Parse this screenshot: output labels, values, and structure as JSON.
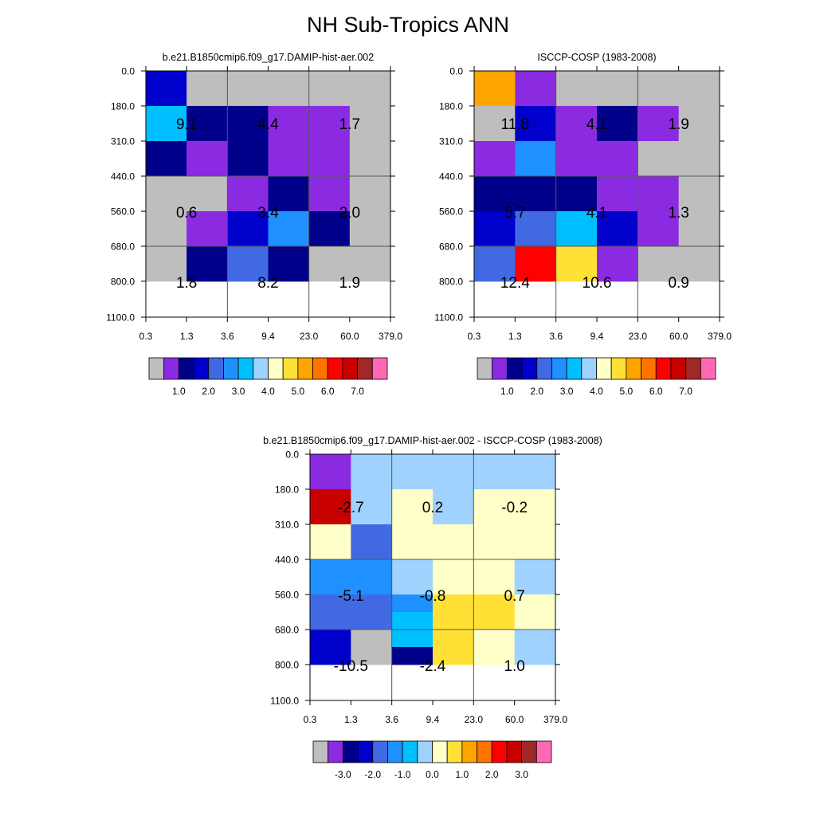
{
  "title": "NH Sub-Tropics ANN",
  "colors": {
    "frame": "#000000",
    "background": "#ffffff",
    "grid_line": "#555555"
  },
  "chart_data": [
    {
      "type": "heatmap",
      "panel": "model",
      "title": "b.e21.B1850cmip6.f09_g17.DAMIP-hist-aer.002",
      "xlabel": "",
      "ylabel": "",
      "x_ticks": [
        "0.3",
        "1.3",
        "3.6",
        "9.4",
        "23.0",
        "60.0",
        "379.0"
      ],
      "y_ticks": [
        "0.0",
        "180.0",
        "310.0",
        "440.0",
        "560.0",
        "680.0",
        "800.0",
        "1100.0"
      ],
      "cells": [
        [
          "#0000cd",
          "#bebebe",
          "#bebebe",
          "#bebebe",
          "#bebebe",
          "#bebebe"
        ],
        [
          "#00bfff",
          "#00008b",
          "#00008b",
          "#8a2be2",
          "#8a2be2",
          "#bebebe"
        ],
        [
          "#00008b",
          "#8a2be2",
          "#00008b",
          "#8a2be2",
          "#8a2be2",
          "#bebebe"
        ],
        [
          "#bebebe",
          "#bebebe",
          "#8a2be2",
          "#00008b",
          "#8a2be2",
          "#bebebe"
        ],
        [
          "#bebebe",
          "#8a2be2",
          "#0000cd",
          "#1e90ff",
          "#00008b",
          "#bebebe"
        ],
        [
          "#bebebe",
          "#00008b",
          "#4169e1",
          "#00008b",
          "#bebebe",
          "#bebebe"
        ]
      ],
      "group_values": [
        [
          "9.1",
          "4.4",
          "1.7"
        ],
        [
          "0.6",
          "3.4",
          "2.0"
        ],
        [
          "1.8",
          "8.2",
          "1.9"
        ]
      ],
      "colorbar": {
        "colors": [
          "#bebebe",
          "#8a2be2",
          "#00008b",
          "#0000cd",
          "#4169e1",
          "#1e90ff",
          "#00bfff",
          "#a0d2ff",
          "#ffffc8",
          "#ffe135",
          "#ffa500",
          "#ff7300",
          "#ff0000",
          "#c80000",
          "#a02828",
          "#ff69b4"
        ],
        "labels": [
          "1.0",
          "2.0",
          "3.0",
          "4.0",
          "5.0",
          "6.0",
          "7.0"
        ],
        "label_boundary_start": 2
      }
    },
    {
      "type": "heatmap",
      "panel": "observations",
      "title": "ISCCP-COSP (1983-2008)",
      "xlabel": "",
      "ylabel": "",
      "x_ticks": [
        "0.3",
        "1.3",
        "3.6",
        "9.4",
        "23.0",
        "60.0",
        "379.0"
      ],
      "y_ticks": [
        "0.0",
        "180.0",
        "310.0",
        "440.0",
        "560.0",
        "680.0",
        "800.0",
        "1100.0"
      ],
      "cells": [
        [
          "#ffa500",
          "#8a2be2",
          "#bebebe",
          "#bebebe",
          "#bebebe",
          "#bebebe"
        ],
        [
          "#bebebe",
          "#0000cd",
          "#8a2be2",
          "#00008b",
          "#8a2be2",
          "#bebebe"
        ],
        [
          "#8a2be2",
          "#1e90ff",
          "#8a2be2",
          "#8a2be2",
          "#bebebe",
          "#bebebe"
        ],
        [
          "#00008b",
          "#00008b",
          "#00008b",
          "#8a2be2",
          "#8a2be2",
          "#bebebe"
        ],
        [
          "#0000cd",
          "#4169e1",
          "#00bfff",
          "#0000cd",
          "#8a2be2",
          "#bebebe"
        ],
        [
          "#4169e1",
          "#ff0000",
          "#ffe135",
          "#8a2be2",
          "#bebebe",
          "#bebebe"
        ]
      ],
      "group_values": [
        [
          "11.8",
          "4.1",
          "1.9"
        ],
        [
          "5.7",
          "4.1",
          "1.3"
        ],
        [
          "12.4",
          "10.6",
          "0.9"
        ]
      ],
      "colorbar": {
        "colors": [
          "#bebebe",
          "#8a2be2",
          "#00008b",
          "#0000cd",
          "#4169e1",
          "#1e90ff",
          "#00bfff",
          "#a0d2ff",
          "#ffffc8",
          "#ffe135",
          "#ffa500",
          "#ff7300",
          "#ff0000",
          "#c80000",
          "#a02828",
          "#ff69b4"
        ],
        "labels": [
          "1.0",
          "2.0",
          "3.0",
          "4.0",
          "5.0",
          "6.0",
          "7.0"
        ],
        "label_boundary_start": 2
      }
    },
    {
      "type": "heatmap",
      "panel": "difference",
      "title": "b.e21.B1850cmip6.f09_g17.DAMIP-hist-aer.002 - ISCCP-COSP (1983-2008)",
      "xlabel": "",
      "ylabel": "",
      "x_ticks": [
        "0.3",
        "1.3",
        "3.6",
        "9.4",
        "23.0",
        "60.0",
        "379.0"
      ],
      "y_ticks": [
        "0.0",
        "180.0",
        "310.0",
        "440.0",
        "560.0",
        "680.0",
        "800.0",
        "1100.0"
      ],
      "cells": [
        [
          "#8a2be2",
          "#a0d2ff",
          "#a0d2ff",
          "#a0d2ff",
          "#a0d2ff",
          "#a0d2ff"
        ],
        [
          "#c80000",
          "#a0d2ff",
          "#ffffc8",
          "#a0d2ff",
          "#ffffc8",
          "#ffffc8"
        ],
        [
          "#ffffc8",
          "#4169e1",
          "#ffffc8",
          "#ffffc8",
          "#ffffc8",
          "#ffffc8"
        ],
        [
          "#1e90ff",
          "#1e90ff",
          "#a0d2ff",
          "#ffffc8",
          "#ffffc8",
          "#a0d2ff"
        ],
        [
          "#4169e1",
          "#4169e1",
          "#1e90ff",
          "#ffe135",
          "#ffe135",
          "#ffffc8"
        ],
        [
          "#0000cd",
          "#bebebe",
          "#00008b",
          "#ffe135",
          "#ffffc8",
          "#a0d2ff"
        ]
      ],
      "extra_cells": [
        {
          "col": 2,
          "row": 4,
          "sub": "upper",
          "color": "#00bfff"
        },
        {
          "col": 2,
          "row": 5,
          "sub": "lower",
          "color": "#00bfff"
        }
      ],
      "group_values": [
        [
          "-2.7",
          "0.2",
          "-0.2"
        ],
        [
          "-5.1",
          "-0.8",
          "0.7"
        ],
        [
          "-10.5",
          "-2.4",
          "1.0"
        ]
      ],
      "colorbar": {
        "colors": [
          "#bebebe",
          "#8a2be2",
          "#00008b",
          "#0000cd",
          "#4169e1",
          "#1e90ff",
          "#00bfff",
          "#a0d2ff",
          "#ffffc8",
          "#ffe135",
          "#ffa500",
          "#ff7300",
          "#ff0000",
          "#c80000",
          "#a02828",
          "#ff69b4"
        ],
        "labels": [
          "-3.0",
          "-2.0",
          "-1.0",
          "0.0",
          "1.0",
          "2.0",
          "3.0"
        ],
        "label_boundary_start": 2
      }
    }
  ]
}
